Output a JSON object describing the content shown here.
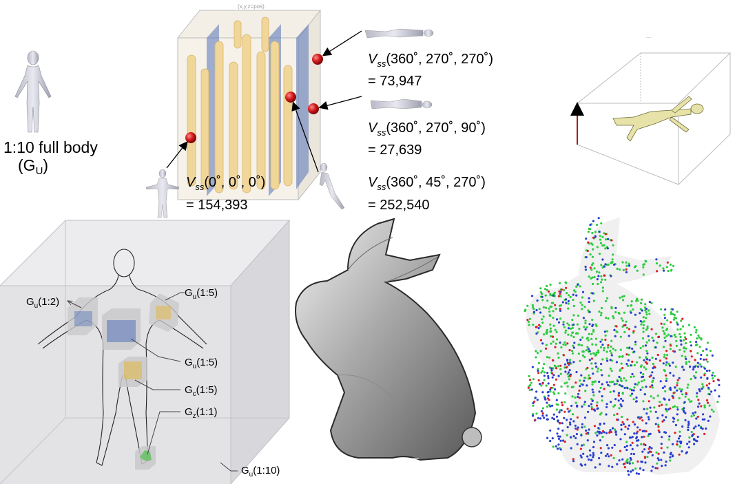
{
  "top_left": {
    "full_body_line1": "1:10 full body",
    "full_body_line2": "(G",
    "full_body_sub": "U",
    "full_body_close": ")"
  },
  "vss": [
    {
      "prefix": "V",
      "sub": "ss",
      "args": "(360˚, 270˚, 270˚)",
      "value": "= 73,947"
    },
    {
      "prefix": "V",
      "sub": "ss",
      "args": "(360˚, 270˚, 90˚)",
      "value": "= 27,639"
    },
    {
      "prefix": "V",
      "sub": "ss",
      "args": "(0˚, 0˚, 0˚)",
      "value": "= 154,393"
    },
    {
      "prefix": "V",
      "sub": "ss",
      "args": "(360˚, 45˚, 270˚)",
      "value": "= 252,540"
    }
  ],
  "body_labels": [
    {
      "base": "G",
      "sub": "u",
      "rest": "(1:2)"
    },
    {
      "base": "G",
      "sub": "u",
      "rest": "(1:5)"
    },
    {
      "base": "G",
      "sub": "u",
      "rest": "(1:5)"
    },
    {
      "base": "G",
      "sub": "c",
      "rest": "(1:5)"
    },
    {
      "base": "G",
      "sub": "z",
      "rest": "(1:1)"
    },
    {
      "base": "G",
      "sub": "u",
      "rest": "(1:10)"
    }
  ],
  "colors": {
    "marker_red": "#d11a1a",
    "cylinder_tan": "#f1d69a",
    "slab_blue": "#5573b8",
    "cube_fill": "#e3e3e5",
    "point_green": "#2ecc40",
    "point_blue": "#2a3fd0",
    "point_red": "#e0202a"
  }
}
